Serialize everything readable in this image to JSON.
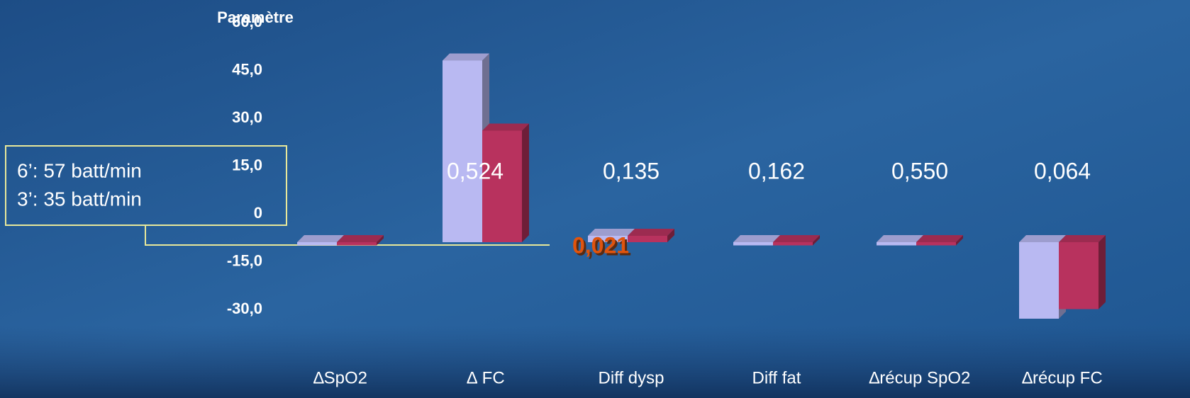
{
  "chart_data": {
    "type": "bar3d",
    "title": "Paramètre",
    "categories": [
      "∆SpO2",
      "∆ FC",
      "Diff dysp",
      "Diff fat",
      "∆récup SpO2",
      "∆récup FC"
    ],
    "series": [
      {
        "color": "#b9b9f2",
        "values": [
          -1,
          57,
          2,
          -1,
          -1,
          -24
        ]
      },
      {
        "color": "#b8325e",
        "values": [
          -1,
          35,
          2,
          -1,
          -1,
          -21
        ]
      }
    ],
    "ylim": [
      -30,
      60
    ],
    "yticks": [
      {
        "value": -30,
        "label": "-30,0"
      },
      {
        "value": -15,
        "label": "-15,0"
      },
      0,
      {
        "value": 15,
        "label": "15,0"
      },
      {
        "value": 30,
        "label": "30,0"
      },
      {
        "value": 45,
        "label": "45,0"
      },
      {
        "value": 60,
        "label": "60,0"
      }
    ],
    "p_values": [
      "0,524",
      "0,021",
      "0,135",
      "0,162",
      "0,550",
      "0,064"
    ],
    "highlight_color": "#e0540e",
    "annotation": [
      "6’: 57 batt/min",
      "3’: 35 batt/min"
    ]
  }
}
